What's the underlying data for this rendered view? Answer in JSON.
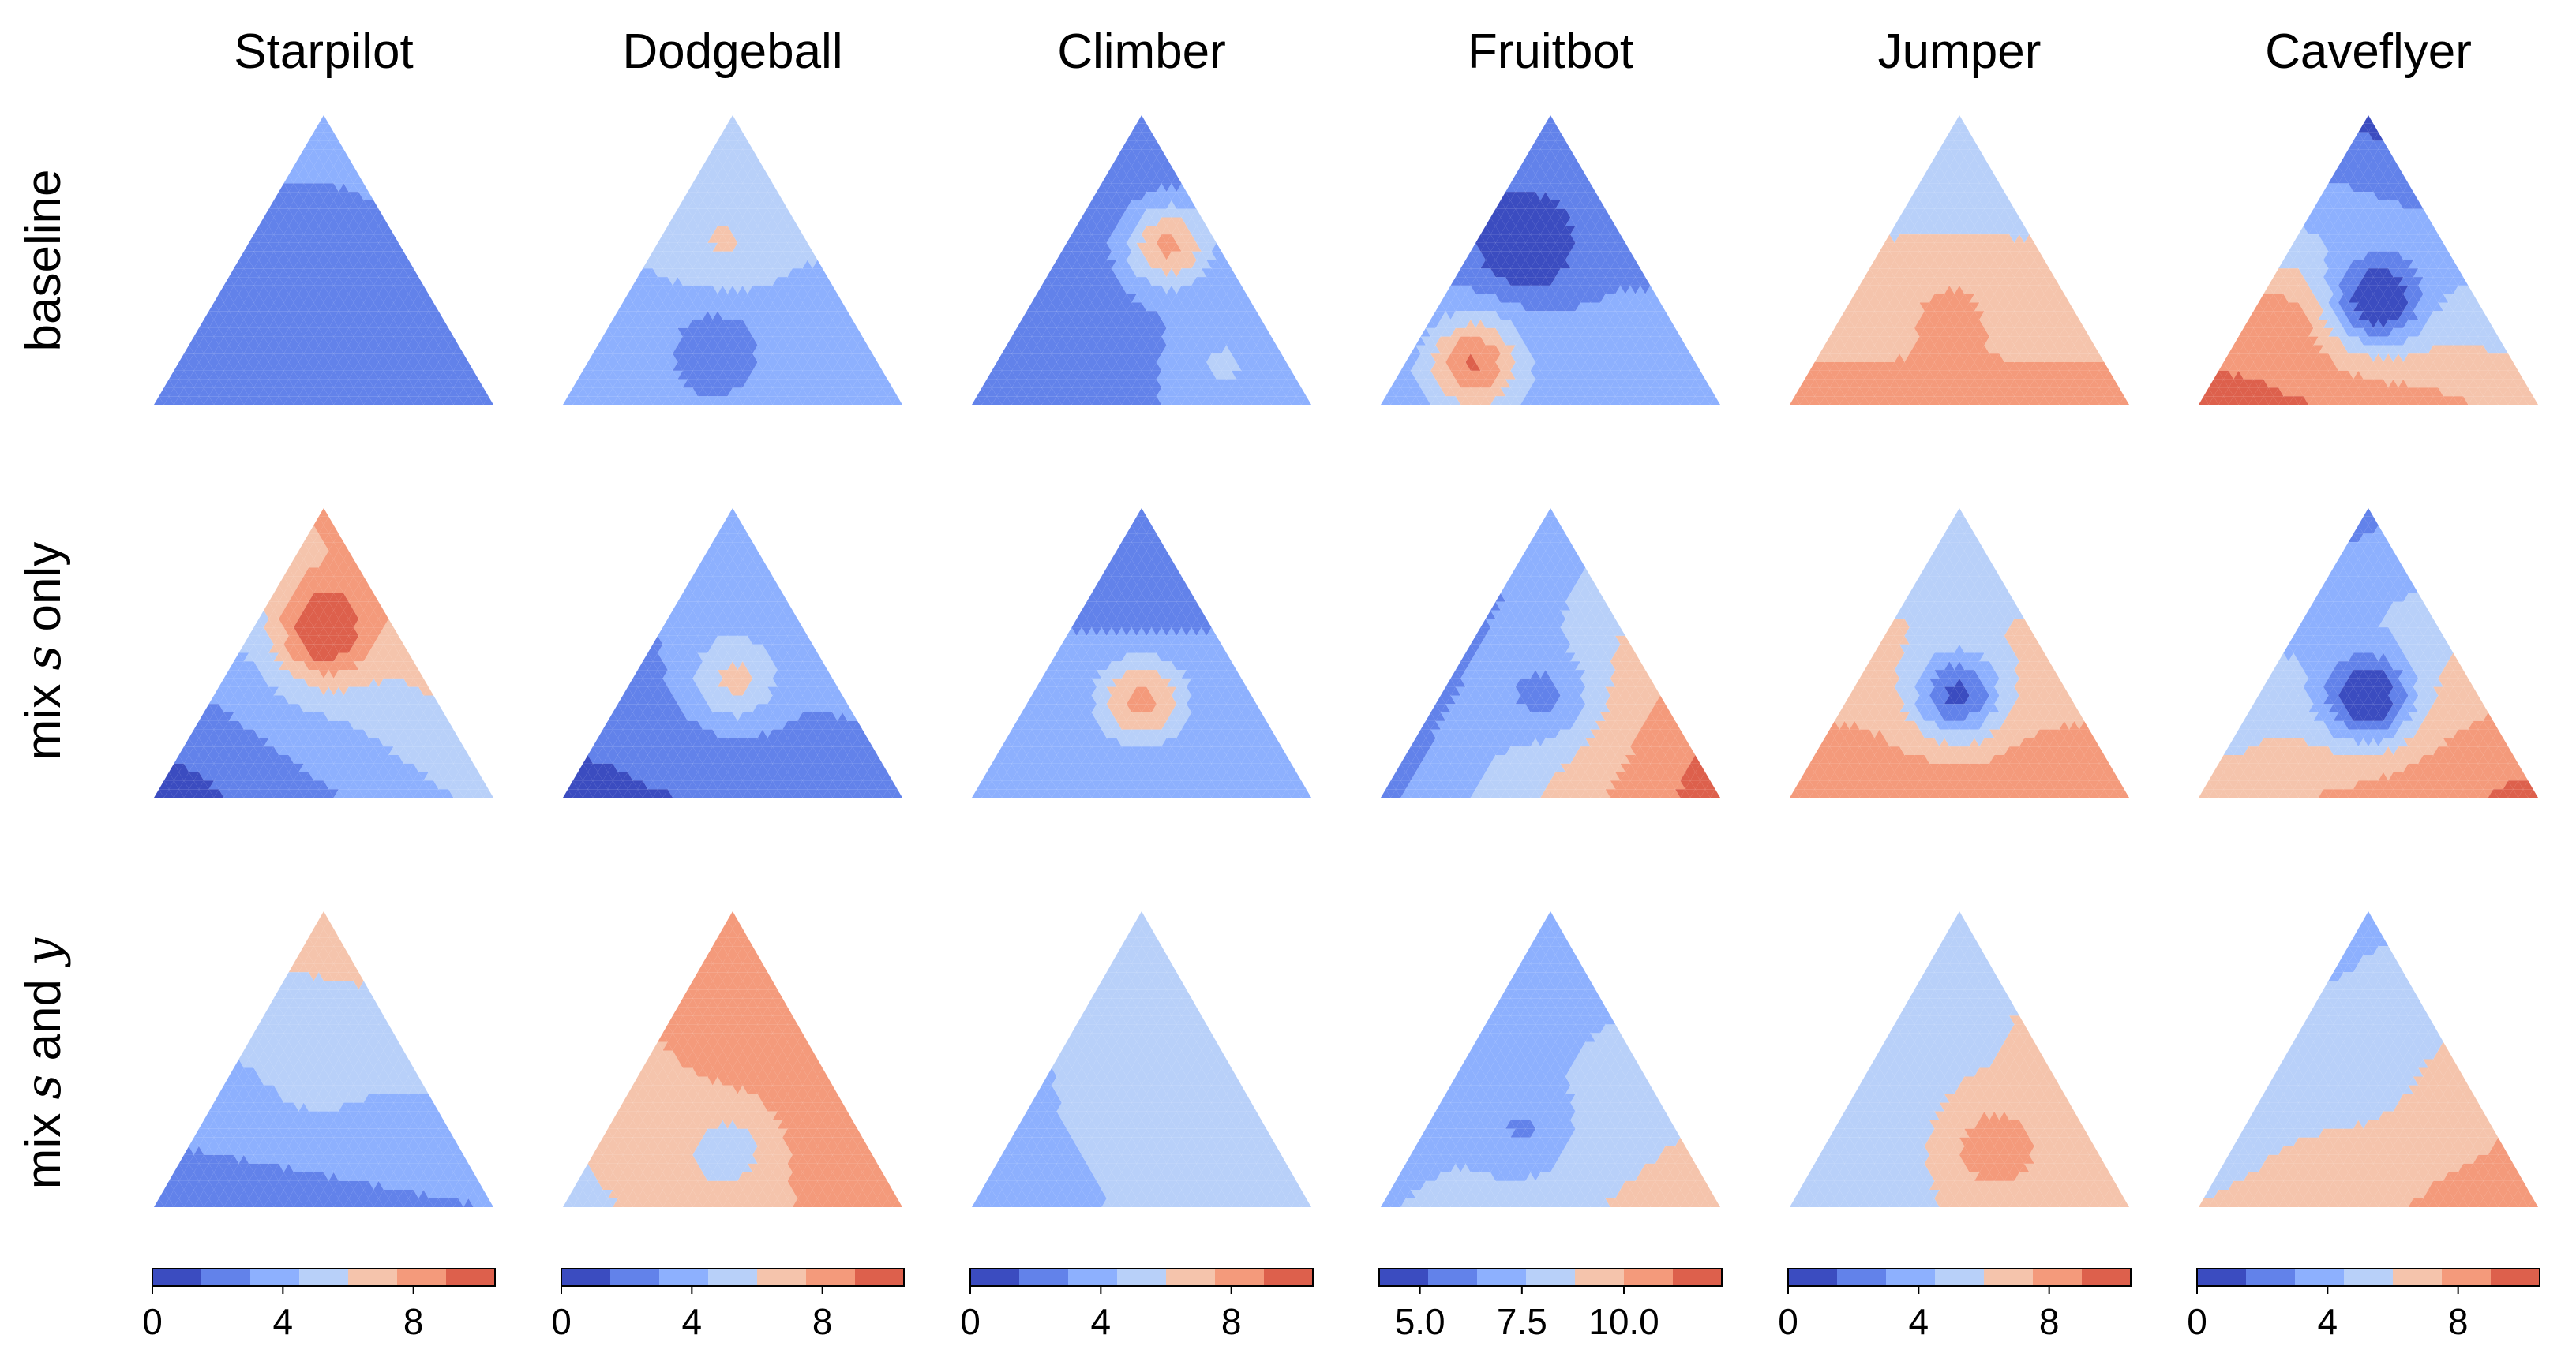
{
  "chart_data": {
    "type": "heatmap",
    "columns": [
      "Starpilot",
      "Dodgeball",
      "Climber",
      "Fruitbot",
      "Jumper",
      "Caveflyer"
    ],
    "rows": [
      {
        "label": "baseline",
        "parts": []
      },
      {
        "label": "mix ",
        "parts": [
          {
            "text": "s",
            "italic": true
          },
          {
            "text": " only",
            "italic": false
          }
        ]
      },
      {
        "label": "mix ",
        "parts": [
          {
            "text": "s",
            "italic": true
          },
          {
            "text": " and ",
            "italic": false
          },
          {
            "text": "y",
            "italic": true
          }
        ]
      }
    ],
    "colormap": "coolwarm",
    "colors": [
      "#3b4cc0",
      "#6282ea",
      "#8db0fe",
      "#b8d0f9",
      "#dddcdc",
      "#f5c4ac",
      "#f49a7b",
      "#dd604c",
      "#b40426"
    ],
    "colorbars": [
      {
        "min": 0,
        "max": 10.5,
        "ticks": [
          0,
          4,
          8
        ],
        "tick_labels": [
          "0",
          "4",
          "8"
        ],
        "levels": 7
      },
      {
        "min": 0,
        "max": 10.5,
        "ticks": [
          0,
          4,
          8
        ],
        "tick_labels": [
          "0",
          "4",
          "8"
        ],
        "levels": 7
      },
      {
        "min": 0,
        "max": 10.5,
        "ticks": [
          0,
          4,
          8
        ],
        "tick_labels": [
          "0",
          "4",
          "8"
        ],
        "levels": 7
      },
      {
        "min": 4.0,
        "max": 12.4,
        "ticks": [
          5.0,
          7.5,
          10.0
        ],
        "tick_labels": [
          "5.0",
          "7.5",
          "10.0"
        ],
        "levels": 7
      },
      {
        "min": 0,
        "max": 10.5,
        "ticks": [
          0,
          4,
          8
        ],
        "tick_labels": [
          "0",
          "4",
          "8"
        ],
        "levels": 7
      },
      {
        "min": 0,
        "max": 10.5,
        "ticks": [
          0,
          4,
          8
        ],
        "tick_labels": [
          "0",
          "4",
          "8"
        ],
        "levels": 7
      }
    ],
    "fields": [
      [
        {
          "corners": [
            3.5,
            1.5,
            2.5
          ],
          "blobs": [
            [
              0.55,
              0.2,
              0.25,
              -1.0
            ]
          ]
        },
        {
          "corners": [
            5.5,
            3.5,
            3.5
          ],
          "blobs": [
            [
              0.55,
              0.25,
              0.2,
              1.5
            ],
            [
              0.2,
              0.45,
              0.35,
              -2.0
            ]
          ]
        },
        {
          "corners": [
            1.5,
            1.5,
            4.0
          ],
          "blobs": [
            [
              0.55,
              0.15,
              0.3,
              5.5
            ],
            [
              0.15,
              0.2,
              0.65,
              1.5
            ]
          ]
        },
        {
          "corners": [
            5.5,
            7.0,
            7.0
          ],
          "blobs": [
            [
              0.55,
              0.3,
              0.15,
              -3.0
            ],
            [
              0.15,
              0.65,
              0.2,
              4.5
            ]
          ]
        },
        {
          "corners": [
            4.5,
            8.0,
            8.0
          ],
          "blobs": [
            [
              0.35,
              0.35,
              0.3,
              1.0
            ]
          ]
        },
        {
          "corners": [
            1.0,
            10.0,
            7.0
          ],
          "blobs": [
            [
              0.35,
              0.3,
              0.35,
              -6.0
            ],
            [
              0.3,
              0.6,
              0.1,
              1.5
            ]
          ]
        }
      ],
      [
        {
          "corners": [
            8.0,
            0.5,
            5.0
          ],
          "blobs": [
            [
              0.6,
              0.2,
              0.2,
              3.5
            ],
            [
              0.5,
              0.25,
              0.25,
              2.0
            ]
          ]
        },
        {
          "corners": [
            4.5,
            1.0,
            2.5
          ],
          "blobs": [
            [
              0.4,
              0.3,
              0.3,
              3.5
            ]
          ]
        },
        {
          "corners": [
            3.0,
            3.0,
            3.0
          ],
          "blobs": [
            [
              0.34,
              0.33,
              0.33,
              5.0
            ],
            [
              0.6,
              0.2,
              0.2,
              -0.5
            ]
          ]
        },
        {
          "corners": [
            6.5,
            6.0,
            12.0
          ],
          "blobs": [
            [
              0.34,
              0.33,
              0.33,
              -2.0
            ]
          ]
        },
        {
          "corners": [
            4.5,
            8.5,
            8.5
          ],
          "blobs": [
            [
              0.35,
              0.33,
              0.32,
              -6.0
            ]
          ]
        },
        {
          "corners": [
            2.5,
            6.5,
            9.5
          ],
          "blobs": [
            [
              0.34,
              0.33,
              0.33,
              -6.5
            ]
          ]
        }
      ],
      [
        {
          "corners": [
            7.0,
            2.0,
            3.0
          ],
          "blobs": [
            [
              0.45,
              0.3,
              0.25,
              1.0
            ]
          ]
        },
        {
          "corners": [
            9.0,
            5.5,
            8.5
          ],
          "blobs": [
            [
              0.2,
              0.4,
              0.4,
              -2.0
            ]
          ]
        },
        {
          "corners": [
            5.5,
            3.5,
            6.0
          ],
          "blobs": [
            [
              0.35,
              0.4,
              0.25,
              0.5
            ]
          ]
        },
        {
          "corners": [
            6.5,
            7.5,
            9.5
          ],
          "blobs": [
            [
              0.25,
              0.45,
              0.3,
              -1.5
            ]
          ]
        },
        {
          "corners": [
            5.5,
            5.0,
            7.0
          ],
          "blobs": [
            [
              0.2,
              0.3,
              0.5,
              2.5
            ]
          ]
        },
        {
          "corners": [
            4.0,
            6.0,
            8.5
          ],
          "blobs": [
            [
              0.45,
              0.3,
              0.25,
              -1.0
            ]
          ]
        }
      ]
    ]
  }
}
